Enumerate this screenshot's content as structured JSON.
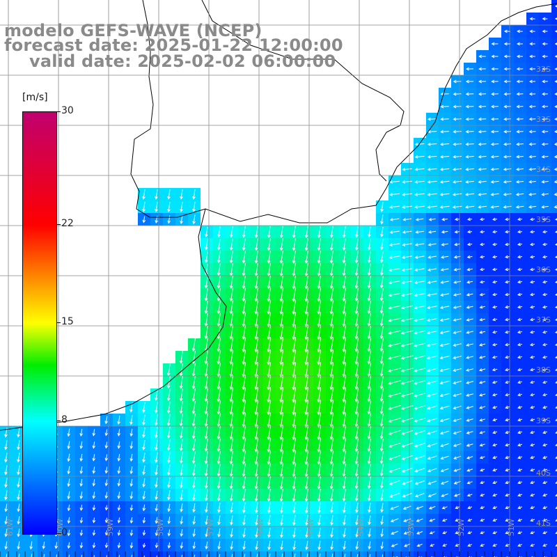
{
  "header": {
    "line1": "modelo GEFS-WAVE (NCEP)",
    "line2": "forecast date: 2025-01-22 12:00:00",
    "line3": "valid date: 2025-02-02 06:00:00"
  },
  "colorbar": {
    "unit": "[m/s]",
    "min": 0,
    "max": 30,
    "ticks": [
      {
        "value": 30,
        "label": "30"
      },
      {
        "value": 22,
        "label": "22"
      },
      {
        "value": 15,
        "label": "15"
      },
      {
        "value": 8,
        "label": "8"
      },
      {
        "value": 0,
        "label": "0"
      }
    ],
    "colors": [
      {
        "value": 0,
        "color": "#0000ff"
      },
      {
        "value": 8,
        "color": "#00ffff"
      },
      {
        "value": 12,
        "color": "#00ee00"
      },
      {
        "value": 15,
        "color": "#ffff00"
      },
      {
        "value": 22,
        "color": "#ff0000"
      },
      {
        "value": 30,
        "color": "#c0006f"
      }
    ]
  },
  "map": {
    "lat_labels": [
      "32S",
      "33S",
      "34S",
      "35S",
      "36S",
      "37S",
      "38S",
      "39S",
      "40S",
      "41S"
    ],
    "lon_labels": [
      "61W",
      "60W",
      "59W",
      "58W",
      "57W",
      "56W",
      "55W",
      "54W",
      "53W",
      "52W",
      "51W"
    ],
    "land_color": "#ffffff",
    "grid_color": "#888888",
    "arrow_color": "#ffffff"
  }
}
